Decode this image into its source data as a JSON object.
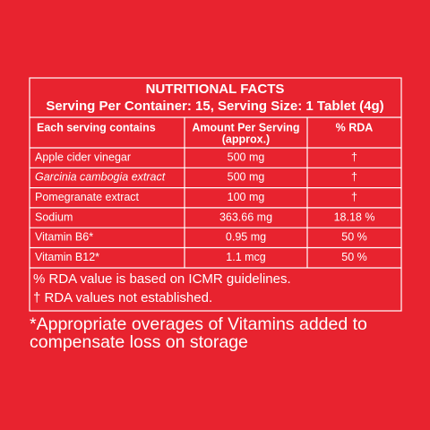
{
  "header": {
    "title": "NUTRITIONAL FACTS",
    "serving": "Serving Per Container: 15, Serving Size: 1 Tablet (4g)"
  },
  "table": {
    "columns": [
      [
        "Each serving contains"
      ],
      [
        "Amount Per Serving",
        "(approx.)"
      ],
      [
        "% RDA"
      ]
    ],
    "rows": [
      [
        "Apple cider vinegar",
        "500 mg",
        "†"
      ],
      [
        "Garcinia cambogia extract",
        "500 mg",
        "†"
      ],
      [
        "Pomegranate extract",
        "100 mg",
        "†"
      ],
      [
        "Sodium",
        "363.66 mg",
        "18.18 %"
      ],
      [
        "Vitamin B6*",
        "0.95 mg",
        "50 %"
      ],
      [
        "Vitamin B12*",
        "1.1 mcg",
        "50 %"
      ]
    ]
  },
  "notes": [
    "% RDA value is based on ICMR guidelines.",
    "† RDA values not established."
  ],
  "footer": [
    "*Appropriate overages of Vitamins added to",
    "compensate loss on storage"
  ]
}
